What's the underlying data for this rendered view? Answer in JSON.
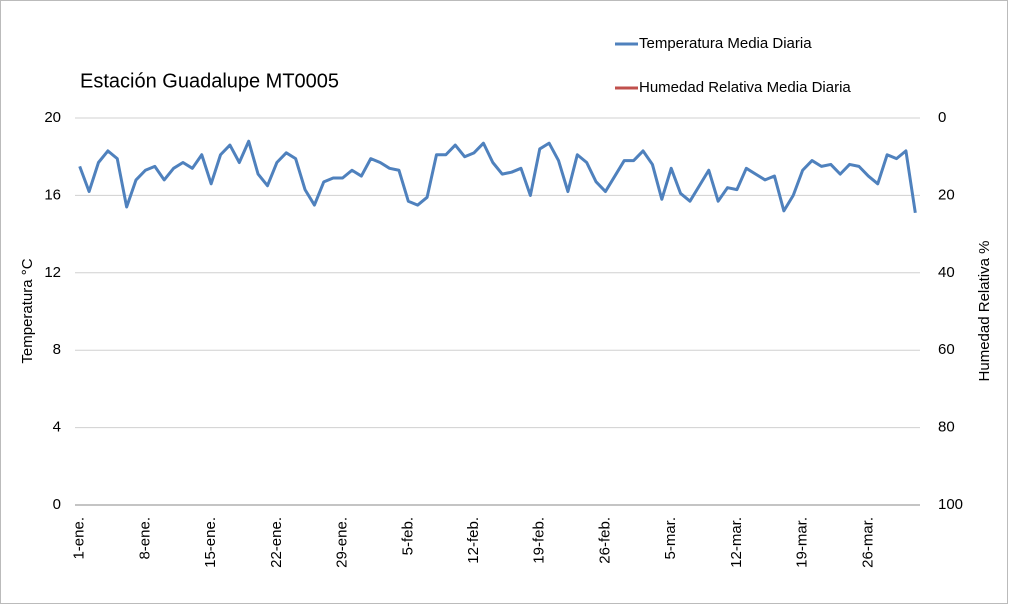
{
  "chart_data": {
    "type": "line",
    "title": "Estación Guadalupe  MT0005",
    "ylabel": "Temperatura °C",
    "y2label": "Humedad Relativa %",
    "categories": [
      "1-ene.",
      null,
      null,
      null,
      null,
      null,
      null,
      "8-ene.",
      null,
      null,
      null,
      null,
      null,
      null,
      "15-ene.",
      null,
      null,
      null,
      null,
      null,
      null,
      "22-ene.",
      null,
      null,
      null,
      null,
      null,
      null,
      "29-ene.",
      null,
      null,
      null,
      null,
      null,
      null,
      "5-feb.",
      null,
      null,
      null,
      null,
      null,
      null,
      "12-feb.",
      null,
      null,
      null,
      null,
      null,
      null,
      "19-feb.",
      null,
      null,
      null,
      null,
      null,
      null,
      "26-feb.",
      null,
      null,
      null,
      null,
      null,
      null,
      "5-mar.",
      null,
      null,
      null,
      null,
      null,
      null,
      "12-mar.",
      null,
      null,
      null,
      null,
      null,
      null,
      "19-mar.",
      null,
      null,
      null,
      null,
      null,
      null,
      "26-mar.",
      null,
      null,
      null,
      null,
      null
    ],
    "series": [
      {
        "name": "Temperatura Media Diaria",
        "color": "#4f81bd",
        "values": [
          17.5,
          16.2,
          17.7,
          18.3,
          17.9,
          15.4,
          16.8,
          17.3,
          17.5,
          16.8,
          17.4,
          17.7,
          17.4,
          18.1,
          16.6,
          18.1,
          18.6,
          17.7,
          18.8,
          17.1,
          16.5,
          17.7,
          18.2,
          17.9,
          16.3,
          15.5,
          16.7,
          16.9,
          16.9,
          17.3,
          17.0,
          17.9,
          17.7,
          17.4,
          17.3,
          15.7,
          15.5,
          15.9,
          18.1,
          18.1,
          18.6,
          18.0,
          18.2,
          18.7,
          17.7,
          17.1,
          17.2,
          17.4,
          16.0,
          18.4,
          18.7,
          17.8,
          16.2,
          18.1,
          17.7,
          16.7,
          16.2,
          17.0,
          17.8,
          17.8,
          18.3,
          17.6,
          15.8,
          17.4,
          16.1,
          15.7,
          16.5,
          17.3,
          15.7,
          16.4,
          16.3,
          17.4,
          17.1,
          16.8,
          17.0,
          15.2,
          16.0,
          17.3,
          17.8,
          17.5,
          17.6,
          17.1,
          17.6,
          17.5,
          17.0,
          16.6,
          18.1,
          17.9,
          18.3,
          15.1
        ]
      },
      {
        "name": "Humedad Relativa Media Diaria",
        "color": "#c0504d",
        "axis": "y2",
        "values": [
          null,
          null,
          null,
          null,
          null,
          null,
          null,
          null,
          null,
          null,
          null,
          null,
          null,
          null,
          null,
          null,
          null,
          null,
          null,
          null,
          null,
          null,
          null,
          null,
          null,
          null,
          null,
          null,
          null,
          null,
          null,
          null,
          null,
          null,
          null,
          null,
          null,
          null,
          null,
          null,
          null,
          null,
          null,
          null,
          null,
          null,
          null,
          null,
          null,
          null,
          null,
          null,
          null,
          null,
          null,
          null,
          null,
          null,
          null,
          null,
          null,
          null,
          null,
          null,
          null,
          null,
          null,
          null,
          null,
          null,
          null,
          null,
          null,
          null,
          null,
          null,
          null,
          null,
          null,
          null,
          null,
          null,
          null,
          null,
          null,
          null,
          null,
          null,
          null,
          null
        ]
      }
    ],
    "ylim": [
      0,
      20
    ],
    "yticks": [
      0,
      4,
      8,
      12,
      16,
      20
    ],
    "y2lim": [
      0,
      100
    ],
    "y2ticks": [
      0,
      20,
      40,
      60,
      80,
      100
    ],
    "y2_reversed": true,
    "grid": true
  }
}
